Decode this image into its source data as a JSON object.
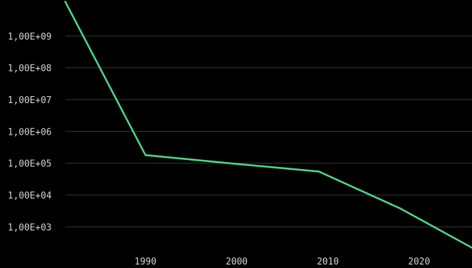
{
  "chart_data": {
    "type": "line",
    "title": "",
    "xlabel": "",
    "ylabel": "",
    "y_scale": "log",
    "xlim": [
      1981.2,
      2025.8
    ],
    "ylim": [
      10,
      20000000000.0
    ],
    "grid": "horizontal",
    "legend": "none",
    "x_ticks": [
      {
        "value": 1990,
        "label": "1990"
      },
      {
        "value": 2000,
        "label": "2000"
      },
      {
        "value": 2010,
        "label": "2010"
      },
      {
        "value": 2020,
        "label": "2020"
      }
    ],
    "y_ticks": [
      {
        "value": 1000000000,
        "label": "1,00E+09"
      },
      {
        "value": 100000000,
        "label": "1,00E+08"
      },
      {
        "value": 10000000,
        "label": "1,00E+07"
      },
      {
        "value": 1000000,
        "label": "1,00E+06"
      },
      {
        "value": 100000,
        "label": "1,00E+05"
      },
      {
        "value": 10000,
        "label": "1,00E+04"
      },
      {
        "value": 1000,
        "label": "1,00E+03"
      }
    ],
    "series": [
      {
        "color": "#4fd68a",
        "points": [
          {
            "x": 1981.2,
            "y": 12000000000
          },
          {
            "x": 1990,
            "y": 180000
          },
          {
            "x": 2000,
            "y": 95000
          },
          {
            "x": 2009,
            "y": 55000
          },
          {
            "x": 2018,
            "y": 3700
          },
          {
            "x": 2025.8,
            "y": 220
          }
        ]
      }
    ]
  },
  "colors": {
    "background": "#000000",
    "grid": "#3a3a3a",
    "tick_text": "#d4d4d4"
  }
}
